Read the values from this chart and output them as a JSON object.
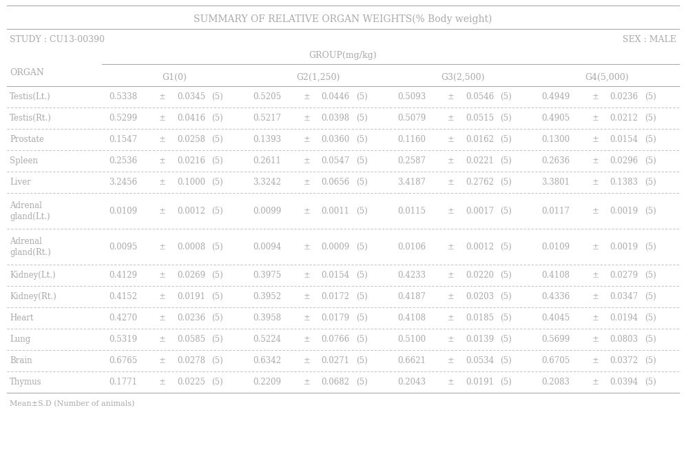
{
  "title": "SUMMARY OF RELATIVE ORGAN WEIGHTS(% Body weight)",
  "study": "STUDY : CU13-00390",
  "sex": "SEX : MALE",
  "group_label": "GROUP(mg/kg)",
  "groups": [
    "G1(0)",
    "G2(1,250)",
    "G3(2,500)",
    "G4(5,000)"
  ],
  "organs": [
    "Testis(Lt.)",
    "Testis(Rt.)",
    "Prostate",
    "Spleen",
    "Liver",
    "Adrenal\ngland(Lt.)",
    "Adrenal\ngland(Rt.)",
    "Kidney(Lt.)",
    "Kidney(Rt.)",
    "Heart",
    "Lung",
    "Brain",
    "Thymus"
  ],
  "data": [
    [
      "0.5338",
      "0.0345",
      "5",
      "0.5205",
      "0.0446",
      "5",
      "0.5093",
      "0.0546",
      "5",
      "0.4949",
      "0.0236",
      "5"
    ],
    [
      "0.5299",
      "0.0416",
      "5",
      "0.5217",
      "0.0398",
      "5",
      "0.5079",
      "0.0515",
      "5",
      "0.4905",
      "0.0212",
      "5"
    ],
    [
      "0.1547",
      "0.0258",
      "5",
      "0.1393",
      "0.0360",
      "5",
      "0.1160",
      "0.0162",
      "5",
      "0.1300",
      "0.0154",
      "5"
    ],
    [
      "0.2536",
      "0.0216",
      "5",
      "0.2611",
      "0.0547",
      "5",
      "0.2587",
      "0.0221",
      "5",
      "0.2636",
      "0.0296",
      "5"
    ],
    [
      "3.2456",
      "0.1000",
      "5",
      "3.3242",
      "0.0656",
      "5",
      "3.4187",
      "0.2762",
      "5",
      "3.3801",
      "0.1383",
      "5"
    ],
    [
      "0.0109",
      "0.0012",
      "5",
      "0.0099",
      "0.0011",
      "5",
      "0.0115",
      "0.0017",
      "5",
      "0.0117",
      "0.0019",
      "5"
    ],
    [
      "0.0095",
      "0.0008",
      "5",
      "0.0094",
      "0.0009",
      "5",
      "0.0106",
      "0.0012",
      "5",
      "0.0109",
      "0.0019",
      "5"
    ],
    [
      "0.4129",
      "0.0269",
      "5",
      "0.3975",
      "0.0154",
      "5",
      "0.4233",
      "0.0220",
      "5",
      "0.4108",
      "0.0279",
      "5"
    ],
    [
      "0.4152",
      "0.0191",
      "5",
      "0.3952",
      "0.0172",
      "5",
      "0.4187",
      "0.0203",
      "5",
      "0.4336",
      "0.0347",
      "5"
    ],
    [
      "0.4270",
      "0.0236",
      "5",
      "0.3958",
      "0.0179",
      "5",
      "0.4108",
      "0.0185",
      "5",
      "0.4045",
      "0.0194",
      "5"
    ],
    [
      "0.5319",
      "0.0585",
      "5",
      "0.5224",
      "0.0766",
      "5",
      "0.5100",
      "0.0139",
      "5",
      "0.5699",
      "0.0803",
      "5"
    ],
    [
      "0.6765",
      "0.0278",
      "5",
      "0.6342",
      "0.0271",
      "5",
      "0.6621",
      "0.0534",
      "5",
      "0.6705",
      "0.0372",
      "5"
    ],
    [
      "0.1771",
      "0.0225",
      "5",
      "0.2209",
      "0.0682",
      "5",
      "0.2043",
      "0.0191",
      "5",
      "0.2083",
      "0.0394",
      "5"
    ]
  ],
  "footnote": "Mean±S.D (Number of animals)",
  "font_color": "#aaaaaa",
  "bg_color": "#ffffff",
  "fs_title": 10,
  "fs_header": 9,
  "fs_data": 8.5,
  "fs_foot": 8
}
